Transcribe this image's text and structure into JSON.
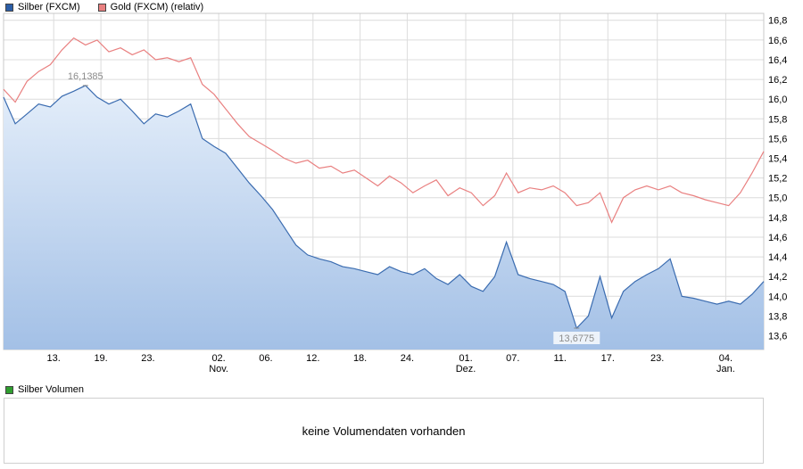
{
  "legend": {
    "silver_label": "Silber (FXCM)",
    "gold_label": "Gold (FXCM) (relativ)",
    "volume_label": "Silber Volumen"
  },
  "volume_panel": {
    "message": "keine Volumendaten vorhanden"
  },
  "colors": {
    "silver_line": "#3b6cb0",
    "silver_fill_top": "#e4eefa",
    "silver_fill_bottom": "#a3c0e6",
    "gold_line": "#e98080",
    "grid": "#dcdcdc",
    "plot_border": "#c8c8c8",
    "axis_text": "#000000",
    "annotation_text": "#8c8c8c",
    "legend_silver_swatch": "#2b5ea7",
    "legend_gold_swatch": "#e98080",
    "legend_volume_swatch": "#2f9e2f"
  },
  "chart_data": {
    "type": "line",
    "title": "",
    "xlabel": "",
    "ylabel": "",
    "legend_position": "top-left",
    "grid": true,
    "y_axis": {
      "side": "right",
      "min": 13.6,
      "max": 16.8,
      "step": 0.2,
      "tick_labels": [
        {
          "label": "16,8",
          "value": 16.8
        },
        {
          "label": "16,6",
          "value": 16.6
        },
        {
          "label": "16,4",
          "value": 16.4
        },
        {
          "label": "16,2",
          "value": 16.2
        },
        {
          "label": "16,0",
          "value": 16.0
        },
        {
          "label": "15,8",
          "value": 15.8
        },
        {
          "label": "15,6",
          "value": 15.6
        },
        {
          "label": "15,4",
          "value": 15.4
        },
        {
          "label": "15,2",
          "value": 15.2
        },
        {
          "label": "15,0",
          "value": 15.0
        },
        {
          "label": "14,8",
          "value": 14.8
        },
        {
          "label": "14,6",
          "value": 14.6
        },
        {
          "label": "14,4",
          "value": 14.4
        },
        {
          "label": "14,2",
          "value": 14.2
        },
        {
          "label": "14,0",
          "value": 14.0
        },
        {
          "label": "13,8",
          "value": 13.8
        },
        {
          "label": "13,6",
          "value": 13.6
        }
      ]
    },
    "x_ticks": [
      {
        "label": "13.",
        "pos": 0.066
      },
      {
        "label": "19.",
        "pos": 0.128
      },
      {
        "label": "23.",
        "pos": 0.19
      },
      {
        "label": "02.",
        "sub": "Nov.",
        "pos": 0.283
      },
      {
        "label": "06.",
        "pos": 0.345
      },
      {
        "label": "12.",
        "pos": 0.407
      },
      {
        "label": "18.",
        "pos": 0.469
      },
      {
        "label": "24.",
        "pos": 0.531
      },
      {
        "label": "01.",
        "sub": "Dez.",
        "pos": 0.608
      },
      {
        "label": "07.",
        "pos": 0.67
      },
      {
        "label": "11.",
        "pos": 0.732
      },
      {
        "label": "17.",
        "pos": 0.795
      },
      {
        "label": "23.",
        "pos": 0.86
      },
      {
        "label": "04.",
        "sub": "Jan.",
        "pos": 0.95
      }
    ],
    "series": [
      {
        "name": "Silber (FXCM)",
        "color": "#3b6cb0",
        "fill": true,
        "values": [
          16.02,
          15.75,
          15.85,
          15.95,
          15.92,
          16.03,
          16.08,
          16.1385,
          16.02,
          15.95,
          16.0,
          15.88,
          15.75,
          15.85,
          15.82,
          15.88,
          15.95,
          15.6,
          15.52,
          15.45,
          15.3,
          15.15,
          15.02,
          14.88,
          14.7,
          14.52,
          14.42,
          14.38,
          14.35,
          14.3,
          14.28,
          14.25,
          14.22,
          14.3,
          14.25,
          14.22,
          14.28,
          14.18,
          14.12,
          14.22,
          14.1,
          14.05,
          14.2,
          14.55,
          14.22,
          14.18,
          14.15,
          14.12,
          14.05,
          13.6775,
          13.8,
          14.2,
          13.78,
          14.05,
          14.15,
          14.22,
          14.28,
          14.38,
          14.0,
          13.98,
          13.95,
          13.92,
          13.95,
          13.92,
          14.02,
          14.15
        ]
      },
      {
        "name": "Gold (FXCM) (relativ)",
        "color": "#e98080",
        "fill": false,
        "values": [
          16.1,
          15.97,
          16.18,
          16.28,
          16.35,
          16.5,
          16.62,
          16.55,
          16.6,
          16.48,
          16.52,
          16.45,
          16.5,
          16.4,
          16.42,
          16.38,
          16.42,
          16.15,
          16.05,
          15.9,
          15.75,
          15.62,
          15.55,
          15.48,
          15.4,
          15.35,
          15.38,
          15.3,
          15.32,
          15.25,
          15.28,
          15.2,
          15.12,
          15.22,
          15.15,
          15.05,
          15.12,
          15.18,
          15.02,
          15.1,
          15.05,
          14.92,
          15.02,
          15.25,
          15.05,
          15.1,
          15.08,
          15.12,
          15.05,
          14.92,
          14.95,
          15.05,
          14.75,
          15.0,
          15.08,
          15.12,
          15.08,
          15.12,
          15.05,
          15.02,
          14.98,
          14.95,
          14.92,
          15.05,
          15.25,
          15.47
        ]
      }
    ],
    "annotations": [
      {
        "text": "16,1385",
        "value": 16.1385,
        "index": 7,
        "series": "Silber (FXCM)",
        "placement": "above"
      },
      {
        "text": "13,6775",
        "value": 13.6775,
        "index": 49,
        "series": "Silber (FXCM)",
        "placement": "below"
      }
    ]
  }
}
